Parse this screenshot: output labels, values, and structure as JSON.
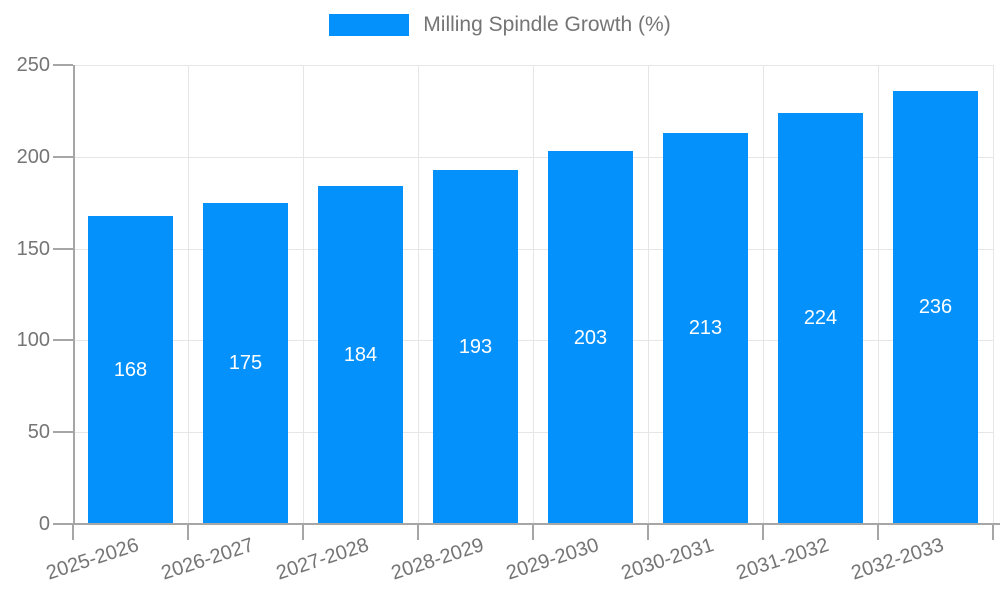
{
  "legend": {
    "label": "Milling Spindle Growth (%)"
  },
  "chart_data": {
    "type": "bar",
    "title": "",
    "xlabel": "",
    "ylabel": "",
    "categories": [
      "2025-2026",
      "2026-2027",
      "2027-2028",
      "2028-2029",
      "2029-2030",
      "2030-2031",
      "2031-2032",
      "2032-2033"
    ],
    "series": [
      {
        "name": "Milling Spindle Growth (%)",
        "values": [
          168,
          175,
          184,
          193,
          203,
          213,
          224,
          236
        ]
      }
    ],
    "value_labels_shown": true,
    "ylim": [
      0,
      250
    ],
    "yticks": [
      0,
      50,
      100,
      150,
      200,
      250
    ],
    "grid": true,
    "legend_position": "top-center"
  },
  "colors": {
    "bar": "#0591fb",
    "grid": "#e6e6e6",
    "axis": "#a6a6a6",
    "tick_text": "#757575",
    "value_text": "#ffffff"
  }
}
